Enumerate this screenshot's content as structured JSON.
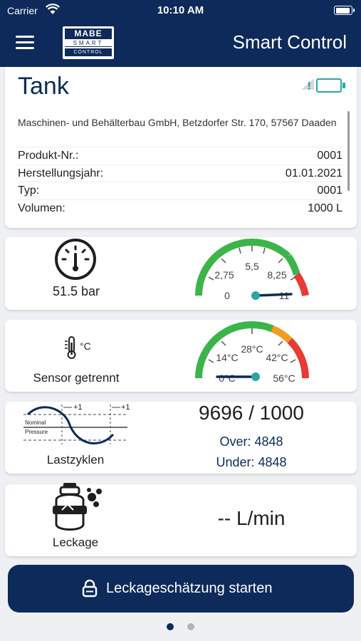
{
  "status_bar": {
    "carrier": "Carrier",
    "time": "10:10 AM"
  },
  "navbar": {
    "title": "Smart Control",
    "logo": {
      "line1": "MABE",
      "line2": "SMART",
      "line3": "CONTROL"
    }
  },
  "tank": {
    "title": "Tank",
    "address": "Maschinen- und Behälterbau GmbH, Betzdorfer Str. 170, 57567 Daaden",
    "rows": [
      {
        "label": "Produkt-Nr.:",
        "value": "0001"
      },
      {
        "label": "Herstellungsjahr:",
        "value": "01.01.2021"
      },
      {
        "label": "Typ:",
        "value": "0001"
      },
      {
        "label": "Volumen:",
        "value": "1000 L"
      }
    ]
  },
  "pressure": {
    "value_label": "51.5 bar",
    "gauge": {
      "ticks": [
        "0",
        "2,75",
        "5,5",
        "8,25",
        "11"
      ],
      "min": 0,
      "max": 11,
      "needle_value": 11
    }
  },
  "temperature": {
    "label": "Sensor getrennt",
    "gauge": {
      "ticks": [
        "0°C",
        "14°C",
        "28°C",
        "42°C",
        "56°C"
      ],
      "min": 0,
      "max": 56,
      "needle_value": 0
    }
  },
  "load_cycles": {
    "label": "Lastzyklen",
    "count": "9696 / 1000",
    "over": "Over: 4848",
    "under": "Under: 4848",
    "diagram": {
      "plus_left": "+1",
      "plus_right": "+1",
      "nominal": "Nominal",
      "pressure": "Pressure"
    }
  },
  "leakage": {
    "label": "Leckage",
    "value": "-- L/min"
  },
  "action_button": {
    "label": "Leckageschätzung starten"
  },
  "colors": {
    "primary": "#0d2a5a",
    "green": "#3bb54a",
    "orange": "#f39c1f",
    "red": "#e83b36",
    "teal": "#2aa6a8"
  }
}
